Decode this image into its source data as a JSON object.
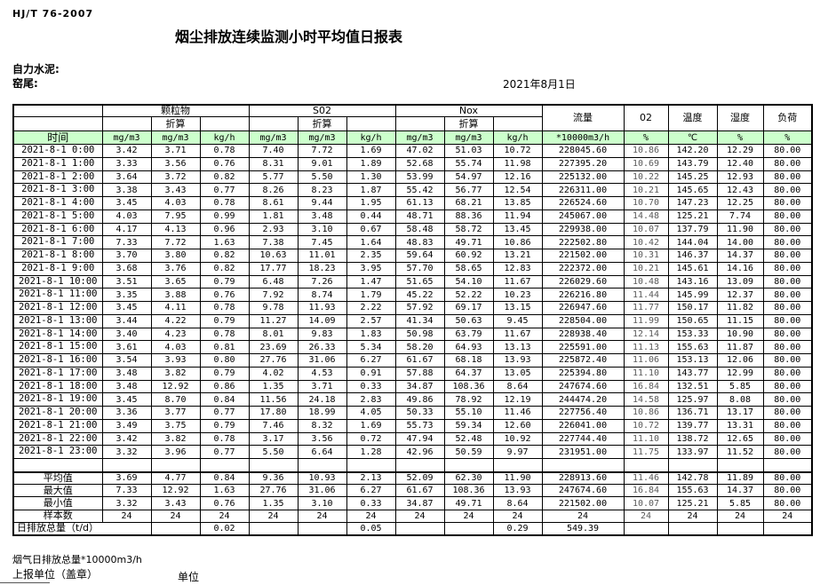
{
  "page": {
    "standard": "HJ/T  76-2007",
    "title": "烟尘排放连续监测小时平均值日报表",
    "company": "自力水泥:",
    "station": "窑尾:",
    "date": "2021年8月1日",
    "accent_green": "#ccffcc"
  },
  "table": {
    "time_header": "时间",
    "groups": [
      {
        "label": "颗粒物",
        "sub": "折算"
      },
      {
        "label": "S02",
        "sub": "折算"
      },
      {
        "label": "Nox",
        "sub": "折算"
      },
      {
        "label": "流量"
      },
      {
        "label": "02"
      },
      {
        "label": "温度"
      },
      {
        "label": "湿度"
      },
      {
        "label": "负荷"
      }
    ],
    "units": [
      "mg/m3",
      "mg/m3",
      "kg/h",
      "mg/m3",
      "mg/m3",
      "kg/h",
      "mg/m3",
      "mg/m3",
      "kg/h",
      "*10000m3/h",
      "%",
      "℃",
      "%",
      "%"
    ],
    "rows": [
      {
        "time": "2021-8-1 0:00",
        "values": [
          "3.42",
          "3.71",
          "0.78",
          "7.40",
          "7.72",
          "1.69",
          "47.02",
          "51.03",
          "10.72",
          "228045.60",
          "10.86",
          "142.20",
          "12.29",
          "80.00"
        ]
      },
      {
        "time": "2021-8-1 1:00",
        "values": [
          "3.33",
          "3.56",
          "0.76",
          "8.31",
          "9.01",
          "1.89",
          "52.68",
          "55.74",
          "11.98",
          "227395.20",
          "10.69",
          "143.79",
          "12.40",
          "80.00"
        ]
      },
      {
        "time": "2021-8-1 2:00",
        "values": [
          "3.64",
          "3.72",
          "0.82",
          "5.77",
          "5.50",
          "1.30",
          "53.99",
          "54.97",
          "12.16",
          "225132.00",
          "10.22",
          "145.25",
          "12.93",
          "80.00"
        ]
      },
      {
        "time": "2021-8-1 3:00",
        "values": [
          "3.38",
          "3.43",
          "0.77",
          "8.26",
          "8.23",
          "1.87",
          "55.42",
          "56.77",
          "12.54",
          "226311.00",
          "10.21",
          "145.65",
          "12.43",
          "80.00"
        ]
      },
      {
        "time": "2021-8-1 4:00",
        "values": [
          "3.45",
          "4.03",
          "0.78",
          "8.61",
          "9.44",
          "1.95",
          "61.13",
          "68.21",
          "13.85",
          "226524.60",
          "10.70",
          "147.23",
          "12.25",
          "80.00"
        ]
      },
      {
        "time": "2021-8-1 5:00",
        "values": [
          "4.03",
          "7.95",
          "0.99",
          "1.81",
          "3.48",
          "0.44",
          "48.71",
          "88.36",
          "11.94",
          "245067.00",
          "14.48",
          "125.21",
          "7.74",
          "80.00"
        ]
      },
      {
        "time": "2021-8-1 6:00",
        "values": [
          "4.17",
          "4.13",
          "0.96",
          "2.93",
          "3.10",
          "0.67",
          "58.48",
          "58.72",
          "13.45",
          "229938.00",
          "10.07",
          "137.79",
          "11.90",
          "80.00"
        ]
      },
      {
        "time": "2021-8-1 7:00",
        "values": [
          "7.33",
          "7.72",
          "1.63",
          "7.38",
          "7.45",
          "1.64",
          "48.83",
          "49.71",
          "10.86",
          "222502.80",
          "10.42",
          "144.04",
          "14.00",
          "80.00"
        ]
      },
      {
        "time": "2021-8-1 8:00",
        "values": [
          "3.70",
          "3.80",
          "0.82",
          "10.63",
          "11.01",
          "2.35",
          "59.64",
          "60.92",
          "13.21",
          "221502.00",
          "10.31",
          "146.37",
          "14.37",
          "80.00"
        ]
      },
      {
        "time": "2021-8-1 9:00",
        "values": [
          "3.68",
          "3.76",
          "0.82",
          "17.77",
          "18.23",
          "3.95",
          "57.70",
          "58.65",
          "12.83",
          "222372.00",
          "10.21",
          "145.61",
          "14.16",
          "80.00"
        ]
      },
      {
        "time": "2021-8-1 10:00",
        "values": [
          "3.51",
          "3.65",
          "0.79",
          "6.48",
          "7.26",
          "1.47",
          "51.65",
          "54.10",
          "11.67",
          "226029.60",
          "10.48",
          "143.16",
          "13.09",
          "80.00"
        ]
      },
      {
        "time": "2021-8-1 11:00",
        "values": [
          "3.35",
          "3.88",
          "0.76",
          "7.92",
          "8.74",
          "1.79",
          "45.22",
          "52.22",
          "10.23",
          "226216.80",
          "11.44",
          "145.99",
          "12.37",
          "80.00"
        ]
      },
      {
        "time": "2021-8-1 12:00",
        "values": [
          "3.45",
          "4.11",
          "0.78",
          "9.78",
          "11.93",
          "2.22",
          "57.92",
          "69.17",
          "13.15",
          "226947.60",
          "11.77",
          "150.17",
          "11.82",
          "80.00"
        ]
      },
      {
        "time": "2021-8-1 13:00",
        "values": [
          "3.44",
          "4.22",
          "0.79",
          "11.27",
          "14.09",
          "2.57",
          "41.34",
          "50.63",
          "9.45",
          "228504.00",
          "11.99",
          "150.65",
          "11.15",
          "80.00"
        ]
      },
      {
        "time": "2021-8-1 14:00",
        "values": [
          "3.40",
          "4.23",
          "0.78",
          "8.01",
          "9.83",
          "1.83",
          "50.98",
          "63.79",
          "11.67",
          "228938.40",
          "12.14",
          "153.33",
          "10.90",
          "80.00"
        ]
      },
      {
        "time": "2021-8-1 15:00",
        "values": [
          "3.61",
          "4.03",
          "0.81",
          "23.69",
          "26.33",
          "5.34",
          "58.20",
          "64.93",
          "13.13",
          "225591.00",
          "11.13",
          "155.63",
          "11.87",
          "80.00"
        ]
      },
      {
        "time": "2021-8-1 16:00",
        "values": [
          "3.54",
          "3.93",
          "0.80",
          "27.76",
          "31.06",
          "6.27",
          "61.67",
          "68.18",
          "13.93",
          "225872.40",
          "11.06",
          "153.13",
          "12.06",
          "80.00"
        ]
      },
      {
        "time": "2021-8-1 17:00",
        "values": [
          "3.48",
          "3.82",
          "0.79",
          "4.02",
          "4.53",
          "0.91",
          "57.88",
          "64.37",
          "13.05",
          "225394.80",
          "11.10",
          "143.77",
          "12.99",
          "80.00"
        ]
      },
      {
        "time": "2021-8-1 18:00",
        "values": [
          "3.48",
          "12.92",
          "0.86",
          "1.35",
          "3.71",
          "0.33",
          "34.87",
          "108.36",
          "8.64",
          "247674.60",
          "16.84",
          "132.51",
          "5.85",
          "80.00"
        ]
      },
      {
        "time": "2021-8-1 19:00",
        "values": [
          "3.45",
          "8.70",
          "0.84",
          "11.56",
          "24.18",
          "2.83",
          "49.86",
          "78.92",
          "12.19",
          "244474.20",
          "14.58",
          "125.97",
          "8.08",
          "80.00"
        ]
      },
      {
        "time": "2021-8-1 20:00",
        "values": [
          "3.36",
          "3.77",
          "0.77",
          "17.80",
          "18.99",
          "4.05",
          "50.33",
          "55.10",
          "11.46",
          "227756.40",
          "10.86",
          "136.71",
          "13.17",
          "80.00"
        ]
      },
      {
        "time": "2021-8-1 21:00",
        "values": [
          "3.49",
          "3.75",
          "0.79",
          "7.46",
          "8.32",
          "1.69",
          "55.73",
          "59.34",
          "12.60",
          "226041.00",
          "10.72",
          "139.77",
          "13.31",
          "80.00"
        ]
      },
      {
        "time": "2021-8-1 22:00",
        "values": [
          "3.42",
          "3.82",
          "0.78",
          "3.17",
          "3.56",
          "0.72",
          "47.94",
          "52.48",
          "10.92",
          "227744.40",
          "11.10",
          "138.72",
          "12.65",
          "80.00"
        ]
      },
      {
        "time": "2021-8-1 23:00",
        "values": [
          "3.32",
          "3.96",
          "0.77",
          "5.50",
          "6.64",
          "1.28",
          "42.96",
          "50.59",
          "9.97",
          "231951.00",
          "11.75",
          "133.97",
          "11.52",
          "80.00"
        ]
      }
    ],
    "summary": [
      {
        "label": "平均值",
        "values": [
          "3.69",
          "4.77",
          "0.84",
          "9.36",
          "10.93",
          "2.13",
          "52.09",
          "62.30",
          "11.90",
          "228913.60",
          "11.46",
          "142.78",
          "11.89",
          "80.00"
        ]
      },
      {
        "label": "最大值",
        "values": [
          "7.33",
          "12.92",
          "1.63",
          "27.76",
          "31.06",
          "6.27",
          "61.67",
          "108.36",
          "13.93",
          "247674.60",
          "16.84",
          "155.63",
          "14.37",
          "80.00"
        ]
      },
      {
        "label": "最小值",
        "values": [
          "3.32",
          "3.43",
          "0.76",
          "1.35",
          "3.10",
          "0.33",
          "34.87",
          "49.71",
          "8.64",
          "221502.00",
          "10.07",
          "125.21",
          "5.85",
          "80.00"
        ]
      },
      {
        "label": "样本数",
        "values": [
          "24",
          "24",
          "24",
          "24",
          "24",
          "24",
          "24",
          "24",
          "24",
          "24",
          "24",
          "24",
          "24",
          "24"
        ]
      }
    ],
    "daily_total": {
      "label": "日排放总量（t/d）",
      "values": [
        "",
        "0.02",
        "",
        "",
        "0.05",
        "",
        "",
        "0.29",
        "549.39",
        "",
        "",
        "",
        ""
      ]
    }
  },
  "footer": {
    "note": "烟气日排放总量*10000m3/h",
    "report_unit": "上报单位（盖章）",
    "unit_label": "单位"
  }
}
